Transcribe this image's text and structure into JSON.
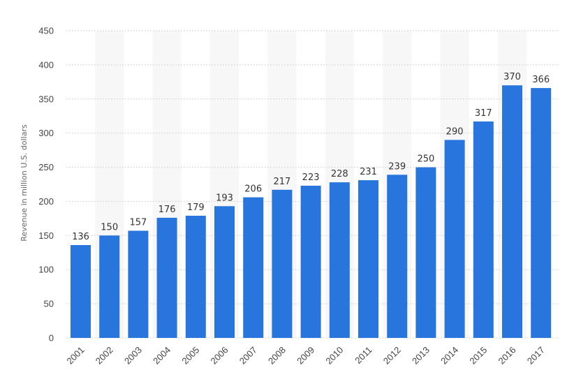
{
  "chart_data": {
    "type": "bar",
    "ylabel": "Revenue in million U.S. dollars",
    "xlabel": "",
    "title": "",
    "ylim": [
      0,
      450
    ],
    "yticks": [
      0,
      50,
      100,
      150,
      200,
      250,
      300,
      350,
      400,
      450
    ],
    "grid": true,
    "categories": [
      "2001",
      "2002",
      "2003",
      "2004",
      "2005",
      "2006",
      "2007",
      "2008",
      "2009",
      "2010",
      "2011",
      "2012",
      "2013",
      "2014",
      "2015",
      "2016",
      "2017"
    ],
    "series": [
      {
        "values": [
          136,
          150,
          157,
          176,
          179,
          193,
          206,
          217,
          223,
          228,
          231,
          239,
          250,
          290,
          317,
          370,
          366
        ]
      }
    ],
    "colors": {
      "bar": "#2876dd",
      "band": "#f7f7f7",
      "grid": "#c8c8c8"
    }
  }
}
